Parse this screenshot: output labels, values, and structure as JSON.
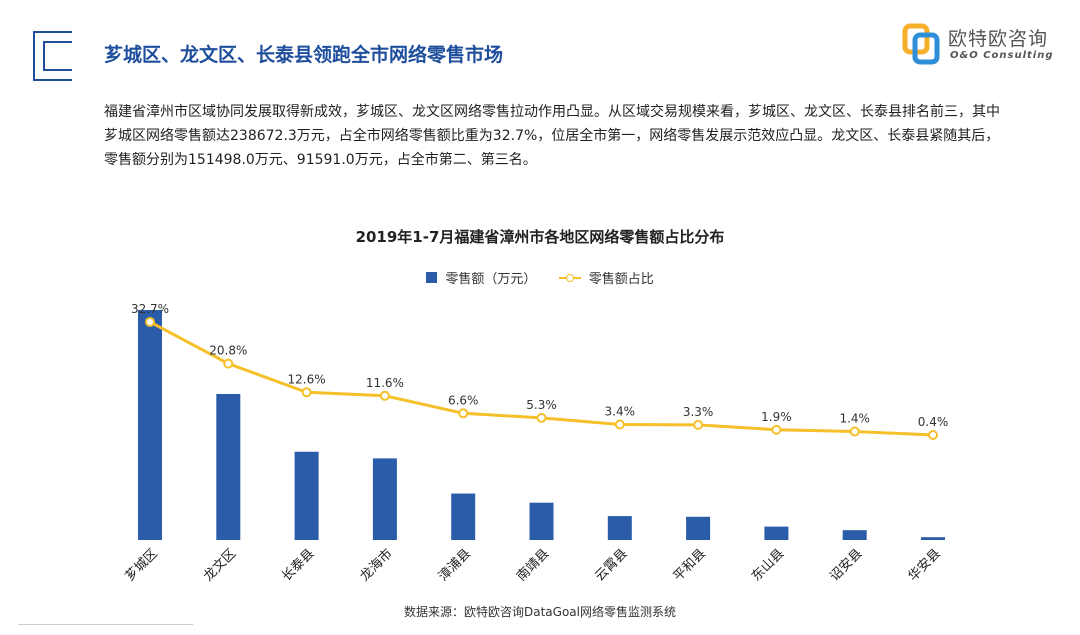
{
  "header": {
    "title": "芗城区、龙文区、长泰县领跑全市网络零售市场"
  },
  "logo": {
    "cn": "欧特欧咨询",
    "en": "O&O Consulting"
  },
  "paragraph": "福建省漳州市区域协同发展取得新成效，芗城区、龙文区网络零售拉动作用凸显。从区域交易规模来看，芗城区、龙文区、长泰县排名前三，其中芗城区网络零售额达238672.3万元，占全市网络零售额比重为32.7%，位居全市第一，网络零售发展示范效应凸显。龙文区、长泰县紧随其后，零售额分别为151498.0万元、91591.0万元，占全市第二、第三名。",
  "source": "数据来源：欧特欧咨询DataGoal网络零售监测系统",
  "colors": {
    "bar": "#2a5caa",
    "line": "#f5c02a",
    "title": "#1f4e9c"
  },
  "chart_data": {
    "type": "bar+line",
    "title": "2019年1-7月福建省漳州市各地区网络零售额占比分布",
    "categories": [
      "芗城区",
      "龙文区",
      "长泰县",
      "龙海市",
      "漳浦县",
      "南靖县",
      "云霄县",
      "平和县",
      "东山县",
      "诏安县",
      "华安县"
    ],
    "series": [
      {
        "name": "零售额（万元）",
        "type": "bar",
        "values": [
          238672.3,
          151498.0,
          91591.0,
          84700,
          48200,
          38700,
          24800,
          24100,
          13900,
          10200,
          2900
        ]
      },
      {
        "name": "零售额占比",
        "type": "line",
        "axis": "secondary",
        "values": [
          32.7,
          20.8,
          12.6,
          11.6,
          6.6,
          5.3,
          3.4,
          3.3,
          1.9,
          1.4,
          0.4
        ],
        "labels": [
          "32.7%",
          "20.8%",
          "12.6%",
          "11.6%",
          "6.6%",
          "5.3%",
          "3.4%",
          "3.3%",
          "1.9%",
          "1.4%",
          "0.4%"
        ]
      }
    ],
    "legend": "top",
    "grid": false
  }
}
